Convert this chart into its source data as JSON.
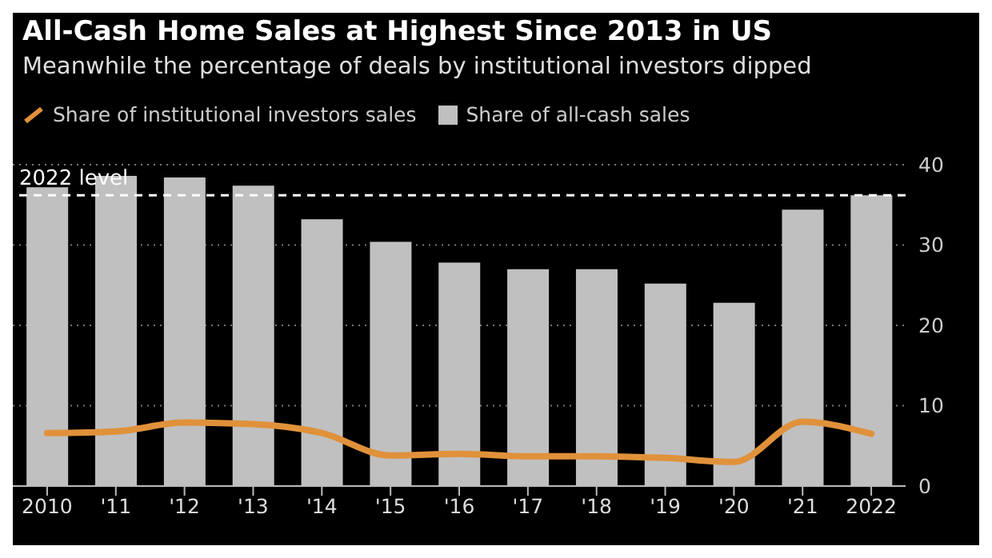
{
  "chart_data": {
    "type": "bar",
    "title": "All-Cash Home Sales at Highest Since 2013 in US",
    "subtitle": "Meanwhile the percentage of deals by institutional investors dipped",
    "categories": [
      "2010",
      "'11",
      "'12",
      "'13",
      "'14",
      "'15",
      "'16",
      "'17",
      "'18",
      "'19",
      "'20",
      "'21",
      "2022"
    ],
    "series": [
      {
        "name": "Share of institutional investors sales",
        "type": "line",
        "color": "#e0913a",
        "values": [
          6.6,
          6.8,
          7.9,
          7.7,
          6.6,
          3.8,
          4.0,
          3.7,
          3.7,
          3.5,
          3.0,
          8.0,
          6.5
        ]
      },
      {
        "name": "Share of all-cash sales",
        "color": "#c0c0c0",
        "values": [
          37.2,
          38.6,
          38.4,
          37.4,
          33.2,
          30.4,
          27.8,
          27.0,
          27.0,
          25.2,
          22.8,
          34.4,
          36.2
        ]
      }
    ],
    "ylim": [
      0,
      40
    ],
    "yticks": [
      0,
      10,
      20,
      30,
      40
    ],
    "grid": "y",
    "legend": "top left",
    "marker": "none",
    "ref_lines": [
      {
        "axis": "y",
        "value": 36.2,
        "label": "2022 level",
        "color": "#ffffff",
        "line_style": "dashed"
      }
    ]
  }
}
